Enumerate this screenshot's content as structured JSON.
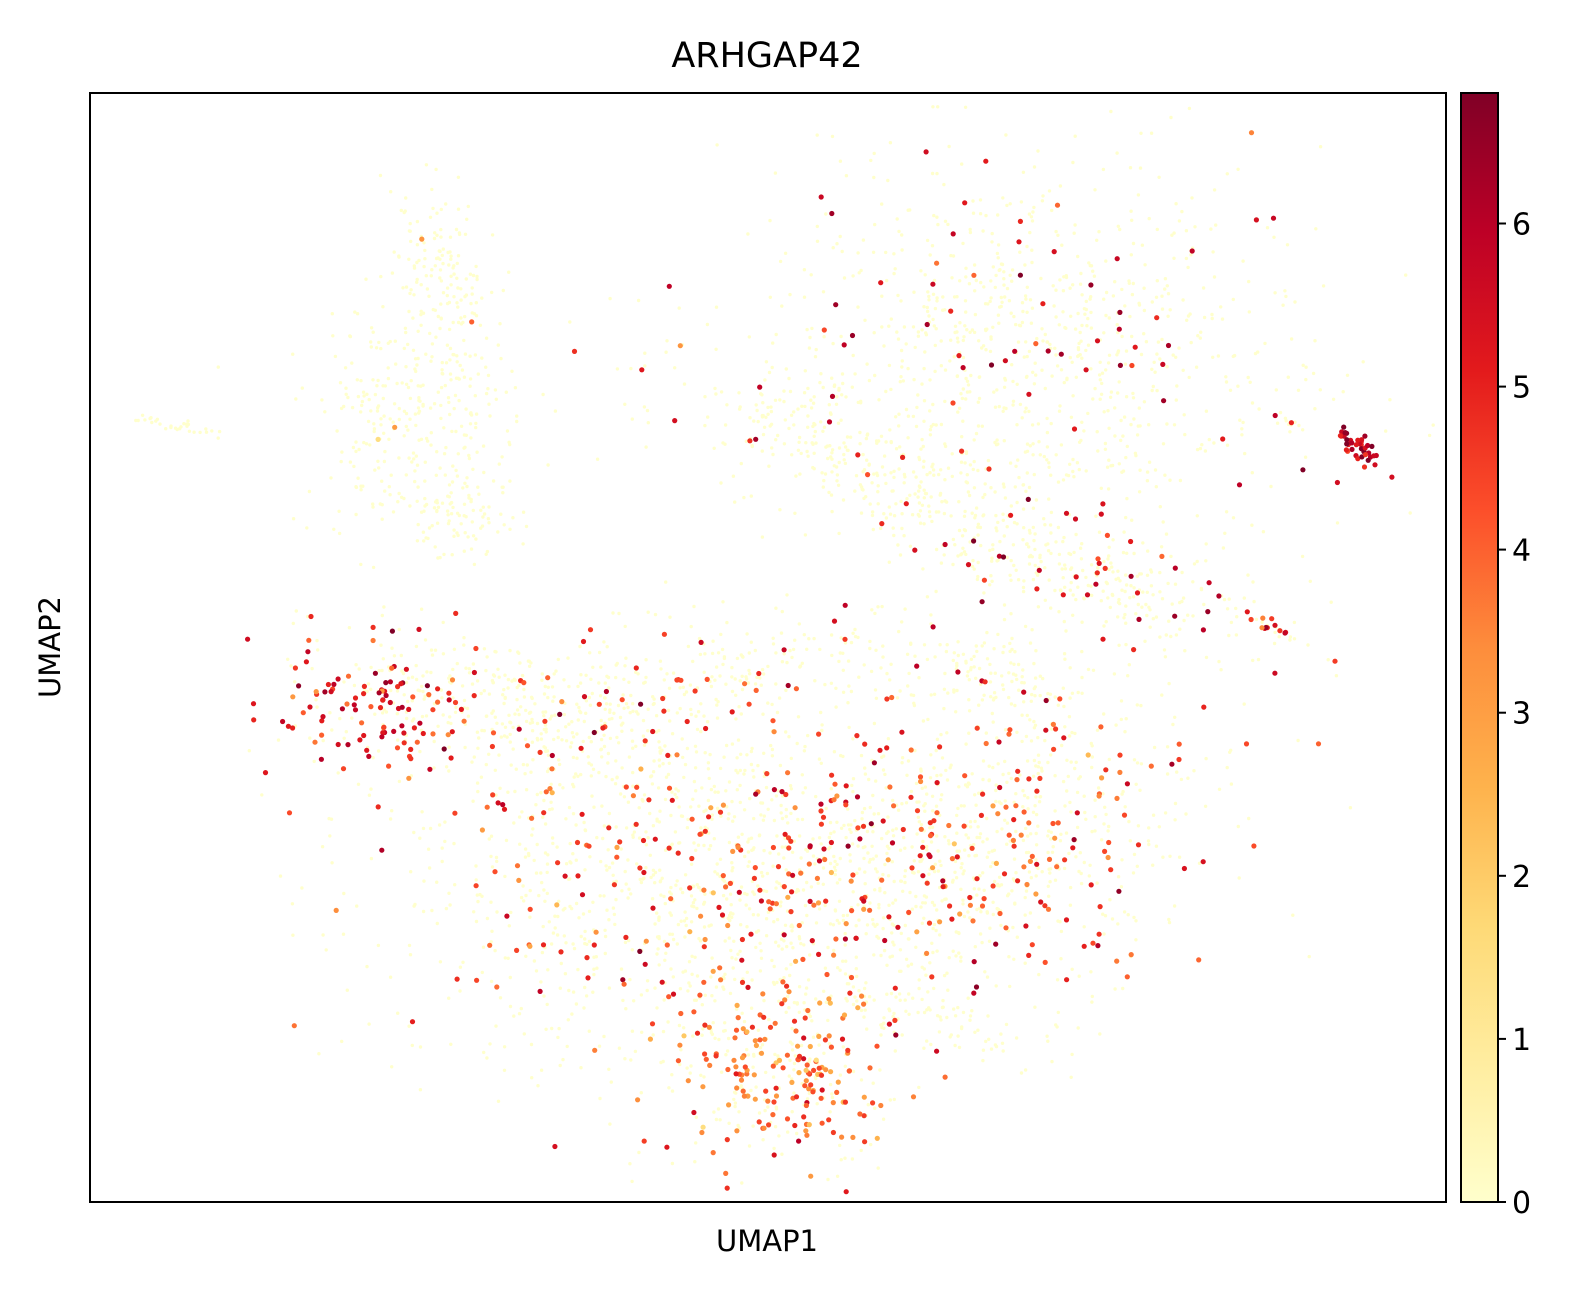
{
  "chart_data": {
    "type": "scatter",
    "title": "ARHGAP42",
    "xlabel": "UMAP1",
    "ylabel": "UMAP2",
    "xlim": [
      0,
      100
    ],
    "ylim": [
      0,
      100
    ],
    "grid": false,
    "x_ticks": [],
    "y_ticks": [],
    "colorbar": {
      "colormap": "YlOrRd",
      "range": [
        0,
        6.8
      ],
      "ticks": [
        0,
        1,
        2,
        3,
        4,
        5,
        6
      ],
      "tick_labels": [
        "0",
        "1",
        "2",
        "3",
        "4",
        "5",
        "6"
      ],
      "colors": [
        "#ffffcc",
        "#ffeda0",
        "#fed976",
        "#feb24c",
        "#fd8d3c",
        "#fc4e2a",
        "#e31a1c",
        "#bd0026",
        "#800026"
      ]
    },
    "clusters": [
      {
        "x": 26.0,
        "y": 85.0,
        "sx": 1.6,
        "sy": 3.6,
        "rot": 12,
        "n": 130,
        "expr_frac": 0.012,
        "expr_mean": 3.5
      },
      {
        "x": 24.0,
        "y": 71.0,
        "sx": 4.0,
        "sy": 5.4,
        "rot": -8,
        "n": 300,
        "expr_frac": 0.01,
        "expr_mean": 3.2
      },
      {
        "x": 27.5,
        "y": 62.5,
        "sx": 2.2,
        "sy": 2.2,
        "rot": 0,
        "n": 90,
        "expr_frac": 0.0,
        "expr_mean": 0
      },
      {
        "x": 70.0,
        "y": 77.0,
        "sx": 10.5,
        "sy": 8.5,
        "rot": -18,
        "n": 900,
        "expr_frac": 0.07,
        "expr_mean": 5.6
      },
      {
        "x": 58.0,
        "y": 66.5,
        "sx": 9.0,
        "sy": 3.0,
        "rot": -28,
        "n": 380,
        "expr_frac": 0.03,
        "expr_mean": 5.5
      },
      {
        "x": 74.5,
        "y": 56.0,
        "sx": 7.0,
        "sy": 2.6,
        "rot": -20,
        "n": 260,
        "expr_frac": 0.13,
        "expr_mean": 5.6
      },
      {
        "x": 66.0,
        "y": 47.5,
        "sx": 5.5,
        "sy": 2.2,
        "rot": -12,
        "n": 160,
        "expr_frac": 0.04,
        "expr_mean": 5.5
      },
      {
        "x": 20.0,
        "y": 45.0,
        "sx": 3.6,
        "sy": 3.4,
        "rot": -25,
        "n": 140,
        "expr_frac": 0.72,
        "expr_mean": 5.0
      },
      {
        "x": 30.5,
        "y": 45.5,
        "sx": 6.0,
        "sy": 2.5,
        "rot": -15,
        "n": 260,
        "expr_frac": 0.09,
        "expr_mean": 5.3
      },
      {
        "x": 45.0,
        "y": 47.0,
        "sx": 7.0,
        "sy": 2.5,
        "rot": 18,
        "n": 180,
        "expr_frac": 0.12,
        "expr_mean": 5.2
      },
      {
        "x": 44.0,
        "y": 30.0,
        "sx": 11.0,
        "sy": 9.0,
        "rot": 0,
        "n": 1300,
        "expr_frac": 0.18,
        "expr_mean": 4.4
      },
      {
        "x": 65.0,
        "y": 31.0,
        "sx": 9.0,
        "sy": 6.0,
        "rot": 28,
        "n": 800,
        "expr_frac": 0.22,
        "expr_mean": 4.6
      },
      {
        "x": 50.5,
        "y": 11.5,
        "sx": 4.2,
        "sy": 4.2,
        "rot": 0,
        "n": 300,
        "expr_frac": 0.55,
        "expr_mean": 3.9
      },
      {
        "x": 63.0,
        "y": 16.0,
        "sx": 4.5,
        "sy": 1.3,
        "rot": -12,
        "n": 80,
        "expr_frac": 0.05,
        "expr_mean": 5.2
      },
      {
        "x": 6.5,
        "y": 70.0,
        "sx": 1.8,
        "sy": 0.35,
        "rot": -18,
        "n": 30,
        "expr_frac": 0.06,
        "expr_mean": 5.5
      },
      {
        "x": 93.7,
        "y": 68.0,
        "sx": 1.2,
        "sy": 0.4,
        "rot": -48,
        "n": 40,
        "expr_frac": 1.0,
        "expr_mean": 5.8
      },
      {
        "x": 88.6,
        "y": 70.2,
        "sx": 0.5,
        "sy": 0.3,
        "rot": -30,
        "n": 12,
        "expr_frac": 0.25,
        "expr_mean": 5.5
      },
      {
        "x": 87.5,
        "y": 51.5,
        "sx": 1.4,
        "sy": 0.3,
        "rot": -35,
        "n": 22,
        "expr_frac": 0.5,
        "expr_mean": 5.0
      }
    ]
  }
}
